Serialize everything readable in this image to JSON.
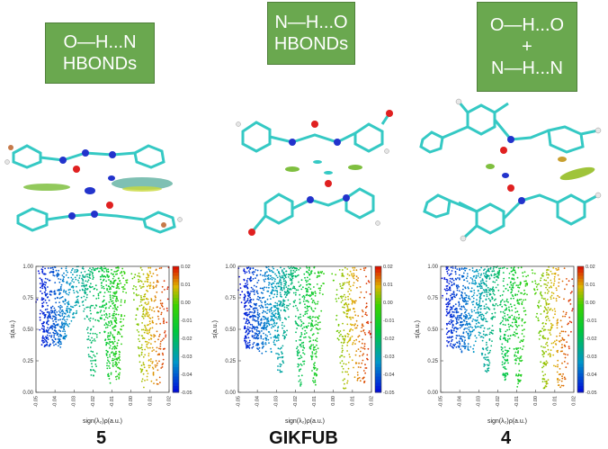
{
  "panels": [
    {
      "label_lines": [
        "O—H...N",
        "HBONDs"
      ],
      "caption": "5"
    },
    {
      "label_lines": [
        "N—H...O",
        "HBONDs"
      ],
      "caption": "GIKFUB"
    },
    {
      "label_lines": [
        "O—H...O",
        "+",
        "N—H...N"
      ],
      "caption": "4"
    }
  ],
  "colors": {
    "label_box": "#6aa84f",
    "carbon": "#35c9c4",
    "hydrogen": "#e6e6e6",
    "oxygen": "#e02020",
    "nitrogen": "#2233cc",
    "bromine": "#c67a4a"
  },
  "chart_data": [
    {
      "type": "scatter",
      "panel": "5",
      "xlabel": "sign(λ₂)ρ(a.u.)",
      "ylabel": "s(a.u.)",
      "xlim": [
        -0.05,
        0.02
      ],
      "ylim": [
        0.0,
        1.0
      ],
      "xticks": [
        "-0.05",
        "-0.04",
        "-0.03",
        "-0.02",
        "-0.01",
        "0.00",
        "0.01",
        "0.02"
      ],
      "yticks": [
        "0.00",
        "0.25",
        "0.50",
        "0.75",
        "1.00"
      ],
      "colorbar": {
        "range": [
          -0.05,
          0.02
        ],
        "ticks": [
          "0.02",
          "0.01",
          "0.00",
          "-0.01",
          "-0.02",
          "-0.03",
          "-0.04",
          "-0.05"
        ]
      },
      "spikes": [
        {
          "x": -0.041,
          "bottom": 0.38,
          "spread": 0.012
        },
        {
          "x": -0.02,
          "bottom": 0.12,
          "spread": 0.004
        },
        {
          "x": -0.011,
          "bottom": 0.05,
          "spread": 0.003
        },
        {
          "x": -0.007,
          "bottom": 0.1,
          "spread": 0.003
        },
        {
          "x": 0.007,
          "bottom": 0.03,
          "spread": 0.004
        },
        {
          "x": 0.013,
          "bottom": 0.02,
          "spread": 0.006
        }
      ]
    },
    {
      "type": "scatter",
      "panel": "GIKFUB",
      "xlabel": "sign(λ₂)ρ(a.u.)",
      "ylabel": "s(a.u.)",
      "xlim": [
        -0.05,
        0.02
      ],
      "ylim": [
        0.0,
        1.0
      ],
      "xticks": [
        "-0.05",
        "-0.04",
        "-0.03",
        "-0.02",
        "-0.01",
        "0.00",
        "0.01",
        "0.02"
      ],
      "yticks": [
        "0.00",
        "0.25",
        "0.50",
        "0.75",
        "1.00"
      ],
      "colorbar": {
        "range": [
          -0.05,
          0.02
        ],
        "ticks": [
          "0.02",
          "0.01",
          "0.00",
          "-0.01",
          "-0.02",
          "-0.03",
          "-0.04",
          "-0.05"
        ]
      },
      "spikes": [
        {
          "x": -0.036,
          "bottom": 0.3,
          "spread": 0.01
        },
        {
          "x": -0.028,
          "bottom": 0.15,
          "spread": 0.004
        },
        {
          "x": -0.017,
          "bottom": 0.04,
          "spread": 0.003
        },
        {
          "x": -0.01,
          "bottom": 0.05,
          "spread": 0.003
        },
        {
          "x": 0.006,
          "bottom": 0.02,
          "spread": 0.004
        },
        {
          "x": 0.014,
          "bottom": 0.02,
          "spread": 0.006
        }
      ]
    },
    {
      "type": "scatter",
      "panel": "4",
      "xlabel": "sign(λ₂)ρ(a.u.)",
      "ylabel": "s(a.u.)",
      "xlim": [
        -0.05,
        0.02
      ],
      "ylim": [
        0.0,
        1.0
      ],
      "xticks": [
        "-0.05",
        "-0.04",
        "-0.03",
        "-0.02",
        "-0.01",
        "0.00",
        "0.01",
        "0.02"
      ],
      "yticks": [
        "0.00",
        "0.25",
        "0.50",
        "0.75",
        "1.00"
      ],
      "colorbar": {
        "range": [
          -0.05,
          0.02
        ],
        "ticks": [
          "0.02",
          "0.01",
          "0.00",
          "-0.01",
          "-0.02",
          "-0.03",
          "-0.04",
          "-0.05"
        ]
      },
      "spikes": [
        {
          "x": -0.036,
          "bottom": 0.3,
          "spread": 0.01
        },
        {
          "x": -0.026,
          "bottom": 0.15,
          "spread": 0.004
        },
        {
          "x": -0.016,
          "bottom": 0.06,
          "spread": 0.003
        },
        {
          "x": -0.009,
          "bottom": 0.04,
          "spread": 0.003
        },
        {
          "x": 0.005,
          "bottom": 0.03,
          "spread": 0.004
        },
        {
          "x": 0.013,
          "bottom": 0.02,
          "spread": 0.006
        }
      ]
    }
  ]
}
